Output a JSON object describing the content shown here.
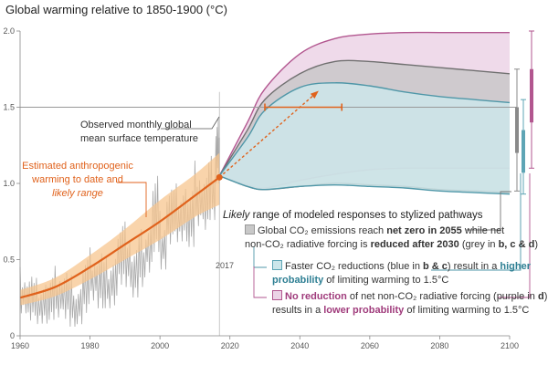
{
  "title": "Global warming relative to 1850-1900 (°C)",
  "chart_data": {
    "type": "line",
    "title": "Global warming relative to 1850-1900 (°C)",
    "xlim": [
      1960,
      2100
    ],
    "ylim": [
      0,
      2.0
    ],
    "x_ticks": [
      "1960",
      "1980",
      "2000",
      "2020",
      "2040",
      "2060",
      "2080",
      "2100"
    ],
    "y_ticks": [
      "0",
      "0.5",
      "1.0",
      "1.5",
      "2.0"
    ],
    "reference_line": 1.5,
    "vertical_marker": {
      "x": 2017,
      "label": "2017"
    },
    "observed_monthly": {
      "label": "Observed monthly global mean surface temperature",
      "x": [
        1960,
        1962,
        1964,
        1966,
        1968,
        1970,
        1972,
        1974,
        1976,
        1978,
        1980,
        1982,
        1984,
        1986,
        1988,
        1990,
        1992,
        1994,
        1996,
        1998,
        2000,
        2002,
        2004,
        2006,
        2008,
        2010,
        2012,
        2014,
        2016,
        2017
      ],
      "y": [
        0.28,
        0.25,
        0.18,
        0.24,
        0.22,
        0.3,
        0.27,
        0.22,
        0.2,
        0.33,
        0.4,
        0.38,
        0.33,
        0.38,
        0.52,
        0.55,
        0.4,
        0.52,
        0.6,
        0.85,
        0.6,
        0.82,
        0.8,
        0.86,
        0.74,
        0.95,
        0.88,
        0.98,
        1.2,
        1.05
      ],
      "y_min": [
        0.12,
        0.1,
        0.05,
        0.08,
        0.08,
        0.12,
        0.08,
        0.06,
        0.05,
        0.15,
        0.2,
        0.18,
        0.15,
        0.2,
        0.3,
        0.32,
        0.22,
        0.32,
        0.38,
        0.55,
        0.4,
        0.6,
        0.58,
        0.62,
        0.55,
        0.72,
        0.66,
        0.76,
        0.95,
        0.86
      ],
      "y_max": [
        0.45,
        0.42,
        0.38,
        0.4,
        0.38,
        0.46,
        0.45,
        0.4,
        0.37,
        0.5,
        0.58,
        0.58,
        0.52,
        0.58,
        0.72,
        0.75,
        0.6,
        0.7,
        0.8,
        1.05,
        0.82,
        1.0,
        1.0,
        1.05,
        0.95,
        1.15,
        1.08,
        1.18,
        1.55,
        1.3
      ]
    },
    "estimated_anthropogenic": {
      "label_lines": [
        "Estimated anthropogenic",
        "warming to date and",
        "likely range"
      ],
      "x": [
        1960,
        1970,
        1980,
        1990,
        2000,
        2010,
        2017
      ],
      "y": [
        0.25,
        0.32,
        0.45,
        0.6,
        0.75,
        0.92,
        1.04
      ],
      "y_min": [
        0.2,
        0.26,
        0.37,
        0.5,
        0.63,
        0.78,
        0.86
      ],
      "y_max": [
        0.3,
        0.38,
        0.53,
        0.7,
        0.89,
        1.06,
        1.2
      ]
    },
    "projection_arrow": {
      "x": [
        2017,
        2045
      ],
      "y": [
        1.04,
        1.6
      ]
    },
    "projection_range_bar": {
      "x": [
        2030,
        2052
      ],
      "y": 1.5
    },
    "pathways": [
      {
        "name": "grey",
        "x": [
          2017,
          2025,
          2030,
          2040,
          2050,
          2060,
          2070,
          2080,
          2090,
          2100
        ],
        "y_upper": [
          1.05,
          1.35,
          1.55,
          1.72,
          1.8,
          1.8,
          1.78,
          1.76,
          1.74,
          1.72
        ],
        "y_lower": [
          1.05,
          0.98,
          0.96,
          0.98,
          1.0,
          0.99,
          0.98,
          0.96,
          0.95,
          0.94
        ],
        "fill": "#c4c4c4"
      },
      {
        "name": "blue",
        "x": [
          2017,
          2025,
          2030,
          2040,
          2050,
          2060,
          2070,
          2080,
          2090,
          2100
        ],
        "y_upper": [
          1.05,
          1.3,
          1.48,
          1.63,
          1.66,
          1.64,
          1.6,
          1.57,
          1.55,
          1.53
        ],
        "y_lower": [
          1.05,
          0.98,
          0.96,
          0.98,
          0.99,
          0.98,
          0.97,
          0.95,
          0.94,
          0.93
        ],
        "fill": "#cce6ea"
      },
      {
        "name": "purple",
        "x": [
          2017,
          2025,
          2030,
          2040,
          2050,
          2060,
          2070,
          2080,
          2090,
          2100
        ],
        "y_upper": [
          1.05,
          1.4,
          1.62,
          1.85,
          1.95,
          1.98,
          1.99,
          1.99,
          1.99,
          1.99
        ],
        "y_lower": [
          1.05,
          0.99,
          0.97,
          1.02,
          1.06,
          1.09,
          1.1,
          1.1,
          1.1,
          1.1
        ],
        "fill": "#ecd3e6"
      }
    ],
    "side_bars": [
      {
        "name": "grey",
        "range": [
          0.95,
          1.75
        ],
        "box": [
          1.2,
          1.5
        ],
        "color": "#8a8a8a"
      },
      {
        "name": "blue",
        "range": [
          0.93,
          1.55
        ],
        "box": [
          1.07,
          1.35
        ],
        "color": "#5ea5b5"
      },
      {
        "name": "purple",
        "range": [
          1.1,
          2.0
        ],
        "box": [
          1.4,
          1.75
        ],
        "color": "#b2568f"
      }
    ]
  },
  "annotations": {
    "observed_label_lines": [
      "Observed monthly global",
      "mean surface temperature"
    ],
    "likely_title_em": "Likely",
    "likely_title_rest": " range of modeled responses to stylized pathways",
    "grey_l1_a": "Global CO₂ emissions reach ",
    "grey_l1_b": "net zero in 2055",
    "grey_l1_c": " while net",
    "grey_l2_a": "non-CO₂ radiative forcing is ",
    "grey_l2_b": "reduced after 2030",
    "grey_l2_c": " (grey in ",
    "grey_l2_d": "b, c & d",
    "grey_l2_e": ")",
    "blue_l1_a": "Faster CO₂ reductions (blue in ",
    "blue_l1_b": "b & c",
    "blue_l1_c": ") result in a ",
    "blue_l1_d": "higher",
    "blue_l2_a": "probability",
    "blue_l2_b": " of limiting warming to 1.5°C",
    "purp_l1_a": "No reduction",
    "purp_l1_b": " of net non-CO₂ radiative forcing (purple in ",
    "purp_l1_c": "d",
    "purp_l1_d": ")",
    "purp_l2_a": "results in a ",
    "purp_l2_b": "lower probability",
    "purp_l2_c": " of limiting warming to 1.5°C",
    "year_marker": "2017"
  },
  "colors": {
    "orange": "#e0621c",
    "orange_band": "#f7c58f",
    "observed": "#a8a8a8",
    "reference": "#999999",
    "axis": "#888888"
  }
}
